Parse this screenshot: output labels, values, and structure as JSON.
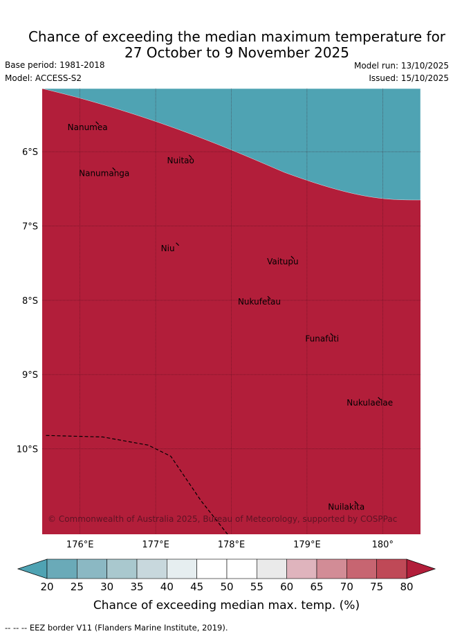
{
  "title_line1": "Chance of exceeding the median maximum temperature for",
  "title_line2": "27 October to 9 November 2025",
  "base_period": "Base period: 1981-2018",
  "model": "Model: ACCESS-S2",
  "model_run": "Model run: 13/10/2025",
  "issued": "Issued: 15/10/2025",
  "copyright": "© Commonwealth of Australia 2025, Bureau of Meteorology, supported by COSPPac",
  "footer": "--  --  -- EEZ border V11 (Flanders Marine Institute, 2019).",
  "axes": {
    "lon_min": 175.5,
    "lon_max": 180.5,
    "lat_top": -5.15,
    "lat_bottom": -11.15,
    "lon_ticks": [
      {
        "v": 176,
        "label": "176°E"
      },
      {
        "v": 177,
        "label": "177°E"
      },
      {
        "v": 178,
        "label": "178°E"
      },
      {
        "v": 179,
        "label": "179°E"
      },
      {
        "v": 180,
        "label": "180°"
      }
    ],
    "lat_ticks": [
      {
        "v": -6,
        "label": "6°S"
      },
      {
        "v": -7,
        "label": "7°S"
      },
      {
        "v": -8,
        "label": "8°S"
      },
      {
        "v": -9,
        "label": "9°S"
      },
      {
        "v": -10,
        "label": "10°S"
      }
    ]
  },
  "islands": [
    {
      "name": "Nanumea",
      "lon": 176.1,
      "lat": -5.67
    },
    {
      "name": "Nuitao",
      "lon": 177.33,
      "lat": -6.12
    },
    {
      "name": "Nanumanga",
      "lon": 176.32,
      "lat": -6.29
    },
    {
      "name": "Niu",
      "lon": 177.16,
      "lat": -7.3
    },
    {
      "name": "Vaitupu",
      "lon": 178.68,
      "lat": -7.48
    },
    {
      "name": "Nukufetau",
      "lon": 178.37,
      "lat": -8.02
    },
    {
      "name": "Funafuti",
      "lon": 179.2,
      "lat": -8.52
    },
    {
      "name": "Nukulaelae",
      "lon": 179.83,
      "lat": -9.38
    },
    {
      "name": "Nuilakita",
      "lon": 179.52,
      "lat": -10.78
    }
  ],
  "eez_border": [
    {
      "lon": 175.55,
      "lat": -9.82
    },
    {
      "lon": 176.3,
      "lat": -9.84
    },
    {
      "lon": 176.9,
      "lat": -9.95
    },
    {
      "lon": 177.2,
      "lat": -10.1
    },
    {
      "lon": 177.6,
      "lat": -10.7
    },
    {
      "lon": 177.95,
      "lat": -11.15
    }
  ],
  "colorbar": {
    "label": "Chance of exceeding median max. temp. (%)",
    "ticks": [
      "20",
      "25",
      "30",
      "35",
      "40",
      "45",
      "50",
      "55",
      "60",
      "65",
      "70",
      "75",
      "80"
    ],
    "colors": [
      "#6aaab8",
      "#8bb8c3",
      "#a9c8ce",
      "#c8d8dd",
      "#e6eef0",
      "#ffffff",
      "#ffffff",
      "#eaeaea",
      "#dfb4bd",
      "#d28c96",
      "#c76571",
      "#bf4957"
    ],
    "under_color": "#4fa3b3",
    "over_color": "#b21e3a"
  },
  "field": {
    "top_levels": [
      {
        "level": 20,
        "color": "#4fa3b3"
      },
      {
        "level": 25,
        "color": "#6aaab8"
      },
      {
        "level": 30,
        "color": "#8bb8c3"
      },
      {
        "level": 35,
        "color": "#a9c8ce"
      },
      {
        "level": 40,
        "color": "#c8d8dd"
      },
      {
        "level": 45,
        "color": "#e6eef0"
      },
      {
        "level": 50,
        "color": "#ffffff"
      },
      {
        "level": 55,
        "color": "#ffffff"
      },
      {
        "level": 60,
        "color": "#eaeaea"
      },
      {
        "level": 65,
        "color": "#dfb4bd"
      },
      {
        "level": 70,
        "color": "#d28c96"
      },
      {
        "level": 75,
        "color": "#c76571"
      },
      {
        "level": 80,
        "color": "#bf4957"
      },
      {
        "level": 85,
        "color": "#b21e3a"
      }
    ]
  }
}
